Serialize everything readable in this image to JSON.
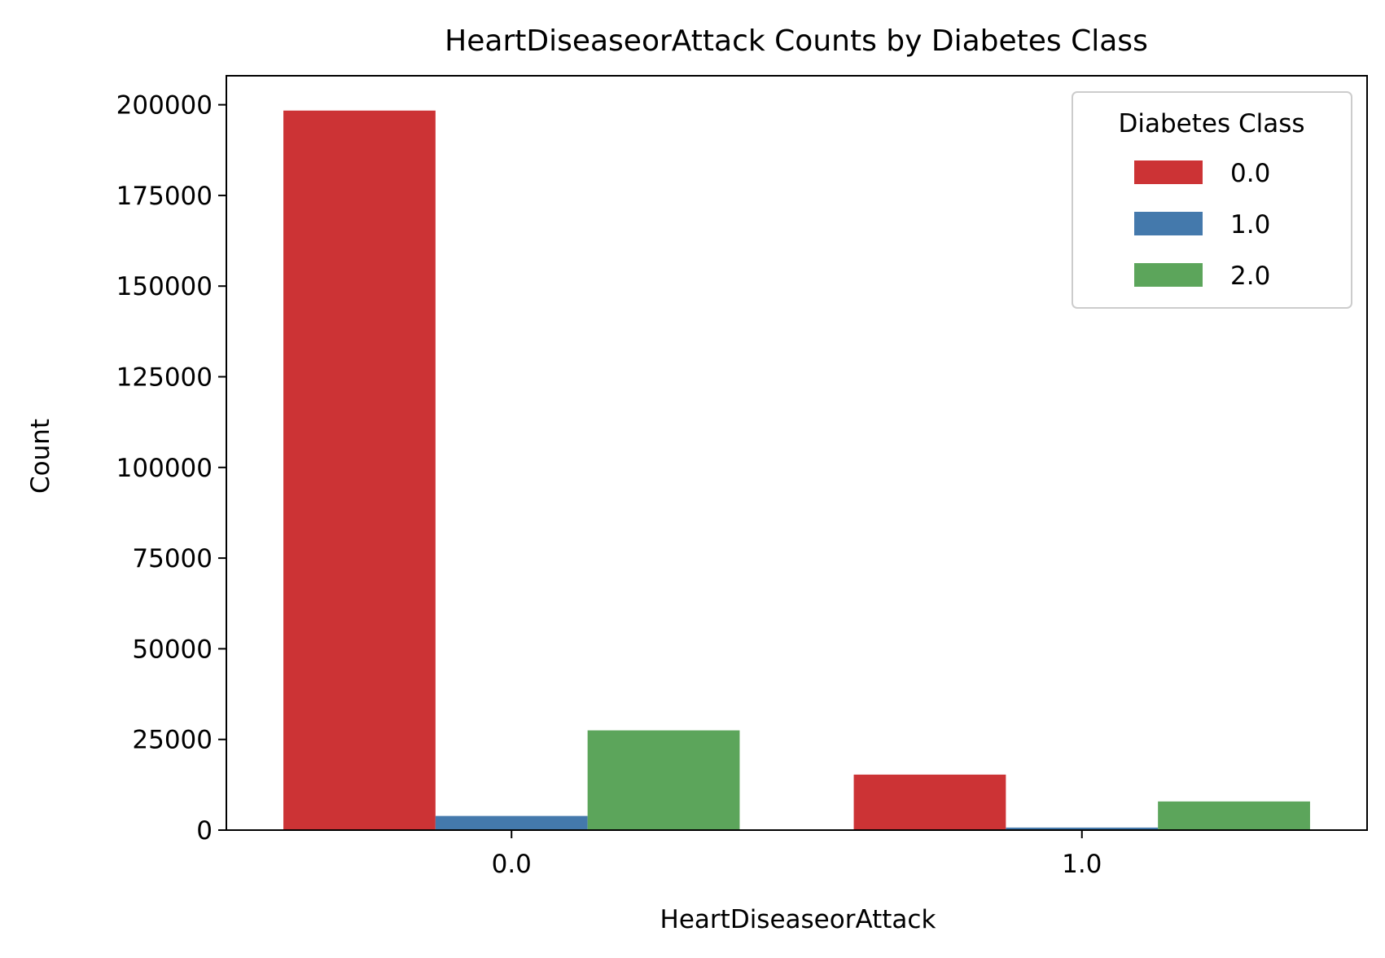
{
  "chart_data": {
    "type": "bar",
    "title": "HeartDiseaseorAttack Counts by Diabetes Class",
    "xlabel": "HeartDiseaseorAttack",
    "ylabel": "Count",
    "categories": [
      "0.0",
      "1.0"
    ],
    "series": [
      {
        "name": "0.0",
        "color": "#cc3335",
        "values": [
          198400,
          15300
        ]
      },
      {
        "name": "1.0",
        "color": "#4479ac",
        "values": [
          3900,
          700
        ]
      },
      {
        "name": "2.0",
        "color": "#5ca55b",
        "values": [
          27500,
          7900
        ]
      }
    ],
    "ylim": [
      0,
      208000
    ],
    "yticks": [
      0,
      25000,
      50000,
      75000,
      100000,
      125000,
      150000,
      175000,
      200000
    ],
    "legend": {
      "title": "Diabetes Class",
      "placement": "top-right"
    },
    "grid": false
  }
}
